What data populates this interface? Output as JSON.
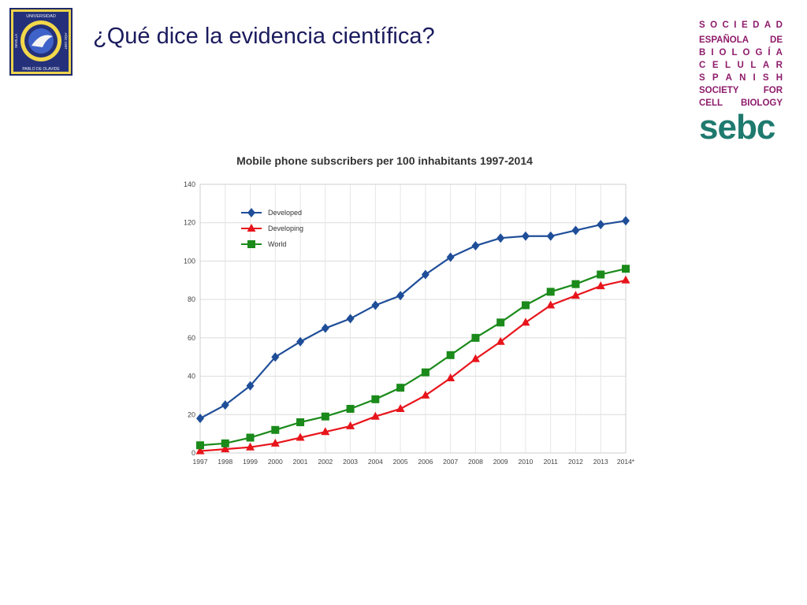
{
  "slide": {
    "title": "¿Qué dice la evidencia científica?"
  },
  "university_logo": {
    "top_text": "UNIVERSIDAD",
    "left_text": "SEVILLA",
    "right_text": "AÑO 1997",
    "bottom_text": "PABLO DE OLAVIDE"
  },
  "society_logo": {
    "lines": [
      "SOCIEDAD",
      "ESPAÑOLA DE",
      "BIOLOGÍA",
      "CELULAR",
      "SPANISH",
      "SOCIETY FOR",
      "CELL BIOLOGY"
    ],
    "wordmark": "sebc",
    "colors": {
      "text": "#8e1b6b",
      "wordmark": "#1e7a6e"
    }
  },
  "chart_data": {
    "type": "line",
    "title": "Mobile phone subscribers per 100 inhabitants 1997-2014",
    "xlabel": "",
    "ylabel": "",
    "categories": [
      "1997",
      "1998",
      "1999",
      "2000",
      "2001",
      "2002",
      "2003",
      "2004",
      "2005",
      "2006",
      "2007",
      "2008",
      "2009",
      "2010",
      "2011",
      "2012",
      "2013",
      "2014*"
    ],
    "ylim": [
      0,
      140
    ],
    "yticks": [
      0,
      20,
      40,
      60,
      80,
      100,
      120,
      140
    ],
    "grid": true,
    "legend": "top-left",
    "series": [
      {
        "name": "Developed",
        "color": "#1f4e99",
        "marker": "diamond",
        "values": [
          18,
          25,
          35,
          50,
          58,
          65,
          70,
          77,
          82,
          93,
          102,
          108,
          112,
          113,
          113,
          116,
          119,
          121
        ]
      },
      {
        "name": "Developing",
        "color": "#e8141b",
        "marker": "triangle",
        "values": [
          1,
          2,
          3,
          5,
          8,
          11,
          14,
          19,
          23,
          30,
          39,
          49,
          58,
          68,
          77,
          82,
          87,
          90
        ]
      },
      {
        "name": "World",
        "color": "#1a8a1a",
        "marker": "square",
        "values": [
          4,
          5,
          8,
          12,
          16,
          19,
          23,
          28,
          34,
          42,
          51,
          60,
          68,
          77,
          84,
          88,
          93,
          96
        ]
      }
    ]
  }
}
